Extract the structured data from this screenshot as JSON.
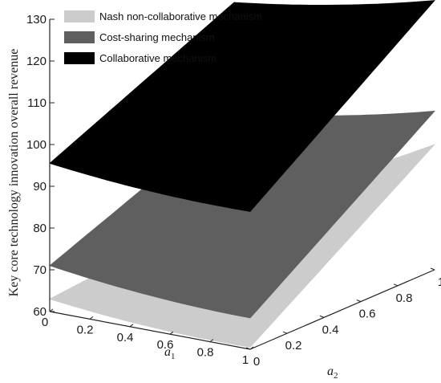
{
  "chart_data": {
    "type": "surface",
    "zlabel": "Key core technology innovation  overall revenue",
    "xlabel": "a",
    "xlabel_sub": "1",
    "ylabel": "a",
    "ylabel_sub": "2",
    "x_ticks": [
      "0",
      "0.2",
      "0.4",
      "0.6",
      "0.8",
      "1"
    ],
    "y_ticks": [
      "0",
      "0.2",
      "0.4",
      "0.6",
      "0.8",
      "1"
    ],
    "z_ticks": [
      "60",
      "70",
      "80",
      "90",
      "100",
      "110",
      "120",
      "130"
    ],
    "xlim": [
      0,
      1
    ],
    "ylim": [
      0,
      1
    ],
    "zlim": [
      60,
      130
    ],
    "legend_position": "top-left",
    "series": [
      {
        "name": "Nash non-collaborative mechanism",
        "color": "#cccccc",
        "corners": {
          "a1_0_a2_0": 63,
          "a1_1_a2_0": 60.5,
          "a1_1_a2_1": 90,
          "a1_0_a2_1": 67
        }
      },
      {
        "name": "Cost-sharing mechanism",
        "color": "#5f5f5f",
        "corners": {
          "a1_0_a2_0": 71,
          "a1_1_a2_0": 67.5,
          "a1_1_a2_1": 98,
          "a1_0_a2_1": 88.5
        }
      },
      {
        "name": "Collaborative mechanism",
        "color": "#000000",
        "corners": {
          "a1_0_a2_0": 95.5,
          "a1_1_a2_0": 93,
          "a1_1_a2_1": 124.5,
          "a1_0_a2_1": 115
        }
      }
    ]
  }
}
